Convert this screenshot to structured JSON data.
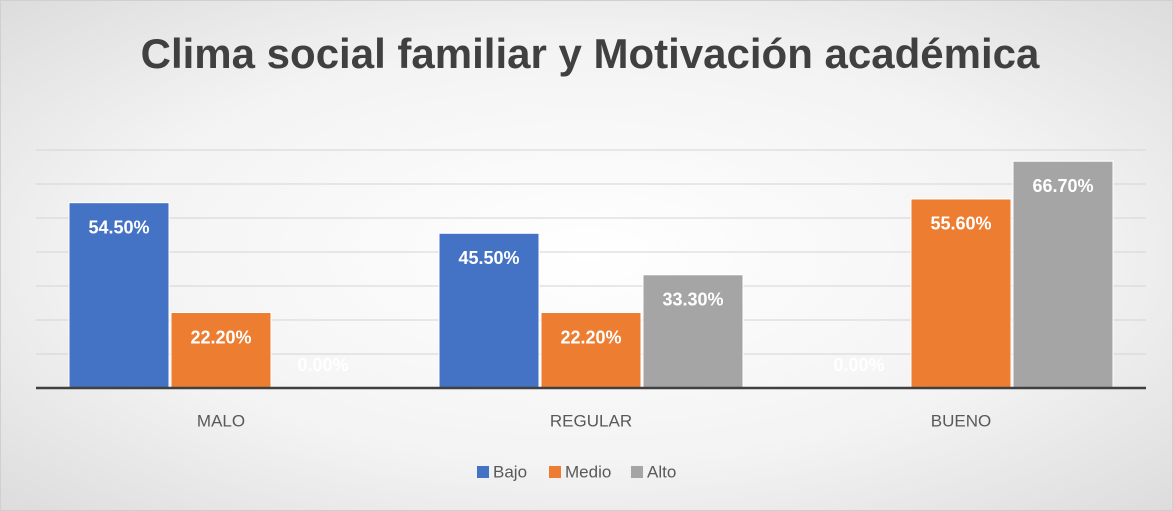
{
  "chart_data": {
    "type": "bar",
    "title": "Clima social familiar y Motivación académica",
    "categories": [
      "MALO",
      "REGULAR",
      "BUENO"
    ],
    "series": [
      {
        "name": "Bajo",
        "color": "#4472c4",
        "values": [
          54.5,
          45.5,
          0
        ],
        "value_labels": [
          "54.50%",
          "45.50%",
          "0.00%"
        ]
      },
      {
        "name": "Medio",
        "color": "#ed7d31",
        "values": [
          22.2,
          22.2,
          55.6
        ],
        "value_labels": [
          "22.20%",
          "22.20%",
          "55.60%"
        ]
      },
      {
        "name": "Alto",
        "color": "#a5a5a5",
        "values": [
          0,
          33.3,
          66.7
        ],
        "value_labels": [
          "0.00%",
          "33.30%",
          "66.70%"
        ]
      }
    ],
    "ylim": [
      0,
      70
    ],
    "yticks": [
      0,
      10,
      20,
      30,
      40,
      50,
      60,
      70
    ],
    "grid": true,
    "legend": "bottom"
  }
}
